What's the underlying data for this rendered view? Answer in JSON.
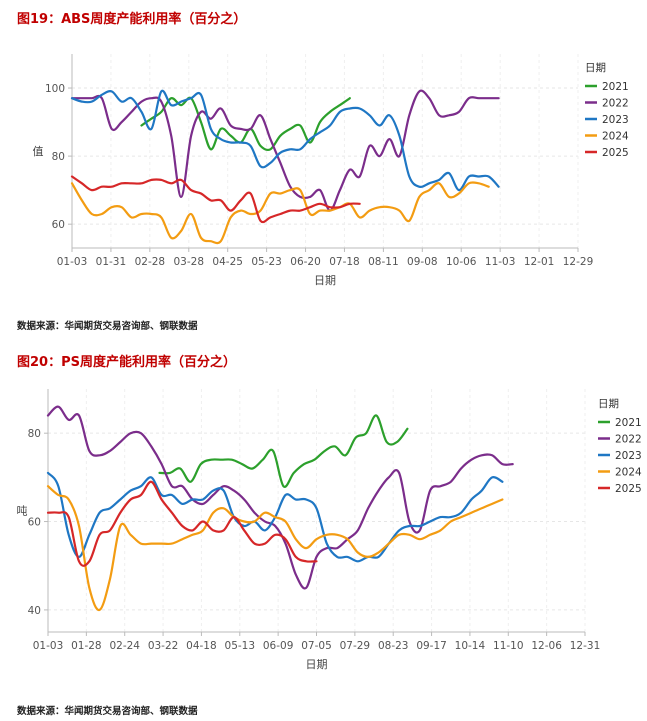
{
  "chart_data": [
    {
      "type": "line",
      "title": "图19：ABS周度产能利用率（百分之）",
      "source": "数据来源：华闻期货交易咨询部、钢联数据",
      "xlabel": "日期",
      "ylabel": "值",
      "legend_title": "日期",
      "legend_position": "top-right",
      "x_ticks": [
        "01-03",
        "01-31",
        "02-28",
        "03-28",
        "04-25",
        "05-23",
        "06-20",
        "07-18",
        "08-11",
        "09-08",
        "10-06",
        "11-03",
        "12-01",
        "12-29"
      ],
      "y_ticks": [
        60,
        80,
        100
      ],
      "ylim": [
        53,
        110
      ],
      "grid": true,
      "series": [
        {
          "name": "2021",
          "color": "#2ca02c",
          "start": 7.0,
          "values": [
            89,
            91,
            93,
            97,
            95,
            97,
            90,
            82,
            88,
            86,
            84,
            88,
            83,
            82,
            86,
            88,
            89,
            84,
            90,
            93,
            95,
            97
          ]
        },
        {
          "name": "2022",
          "color": "#7b2d8b",
          "start": 0,
          "values": [
            97,
            97,
            97,
            97,
            88,
            90,
            93,
            96,
            97,
            96,
            86,
            68,
            86,
            93,
            91,
            94,
            89,
            88,
            88,
            92,
            85,
            78,
            71,
            68,
            68,
            70,
            64,
            70,
            76,
            74,
            83,
            80,
            85,
            80,
            92,
            99,
            97,
            92,
            92,
            93,
            97,
            97,
            97,
            97
          ]
        },
        {
          "name": "2023",
          "color": "#1f77c4",
          "start": 0,
          "values": [
            97,
            96,
            96,
            98,
            99,
            96,
            97,
            93,
            88,
            99,
            95,
            96,
            97,
            98,
            88,
            85,
            84,
            84,
            83,
            77,
            78,
            81,
            82,
            82,
            85,
            87,
            89,
            93,
            94,
            94,
            92,
            89,
            92,
            86,
            74,
            71,
            72,
            73,
            75,
            70,
            74,
            74,
            74,
            71
          ]
        },
        {
          "name": "2024",
          "color": "#f39c12",
          "start": 0,
          "values": [
            72,
            67,
            63,
            63,
            65,
            65,
            62,
            63,
            63,
            62,
            56,
            58,
            63,
            56,
            55,
            55,
            62,
            64,
            63,
            64,
            69,
            69,
            70,
            70,
            63,
            64,
            64,
            65,
            66,
            62,
            64,
            65,
            65,
            64,
            61,
            68,
            70,
            72,
            68,
            69,
            72,
            72,
            71
          ]
        },
        {
          "name": "2025",
          "color": "#d62728",
          "start": 0,
          "values": [
            74,
            72,
            70,
            71,
            71,
            72,
            72,
            72,
            73,
            73,
            72,
            73,
            70,
            69,
            67,
            67,
            64,
            67,
            69,
            61,
            62,
            63,
            64,
            64,
            65,
            66,
            65,
            65,
            66,
            66
          ]
        }
      ]
    },
    {
      "type": "line",
      "title": "图20：PS周度产能利用率（百分之）",
      "source": "数据来源：华闻期货交易咨询部、钢联数据",
      "xlabel": "日期",
      "ylabel": "吨",
      "legend_title": "日期",
      "legend_position": "top-right",
      "x_ticks": [
        "01-03",
        "01-28",
        "02-24",
        "03-22",
        "04-18",
        "05-13",
        "06-09",
        "07-05",
        "07-29",
        "08-23",
        "09-17",
        "10-14",
        "11-10",
        "12-06",
        "12-31"
      ],
      "y_ticks": [
        40,
        60,
        80
      ],
      "ylim": [
        35,
        90
      ],
      "grid": true,
      "series": [
        {
          "name": "2021",
          "color": "#2ca02c",
          "start": 10.8,
          "values": [
            71,
            71,
            72,
            69,
            73,
            74,
            74,
            74,
            73,
            72,
            74,
            76,
            68,
            71,
            73,
            74,
            76,
            77,
            75,
            79,
            80,
            84,
            78,
            78,
            81
          ]
        },
        {
          "name": "2022",
          "color": "#7b2d8b",
          "start": 0,
          "values": [
            84,
            86,
            83,
            84,
            76,
            75,
            76,
            78,
            80,
            80,
            77,
            73,
            68,
            68,
            65,
            64,
            66,
            68,
            67,
            65,
            62,
            60,
            59,
            55,
            48,
            45,
            52,
            54,
            54,
            56,
            58,
            63,
            67,
            70,
            71,
            60,
            58,
            67,
            68,
            69,
            72,
            74,
            75,
            75,
            73,
            73
          ]
        },
        {
          "name": "2023",
          "color": "#1f77c4",
          "start": 0,
          "values": [
            71,
            68,
            57,
            52,
            57,
            62,
            63,
            65,
            67,
            68,
            70,
            66,
            66,
            64,
            65,
            65,
            67,
            67,
            61,
            59,
            60,
            58,
            61,
            66,
            65,
            65,
            63,
            55,
            52,
            52,
            51,
            52,
            52,
            55,
            58,
            59,
            59,
            60,
            61,
            61,
            62,
            65,
            67,
            70,
            69
          ]
        },
        {
          "name": "2024",
          "color": "#f39c12",
          "start": 0,
          "values": [
            68,
            66,
            65,
            59,
            45,
            40,
            47,
            59,
            57,
            55,
            55,
            55,
            55,
            56,
            57,
            58,
            62,
            63,
            61,
            60,
            60,
            62,
            61,
            60,
            56,
            54,
            56,
            57,
            57,
            56,
            53,
            52,
            53,
            55,
            57,
            57,
            56,
            57,
            58,
            60,
            61,
            62,
            63,
            64,
            65
          ]
        },
        {
          "name": "2025",
          "color": "#d62728",
          "start": 0,
          "values": [
            62,
            62,
            61,
            51,
            51,
            57,
            58,
            62,
            65,
            66,
            69,
            65,
            62,
            59,
            58,
            60,
            58,
            58,
            61,
            58,
            55,
            55,
            57,
            56,
            52,
            51,
            51
          ]
        }
      ]
    }
  ]
}
